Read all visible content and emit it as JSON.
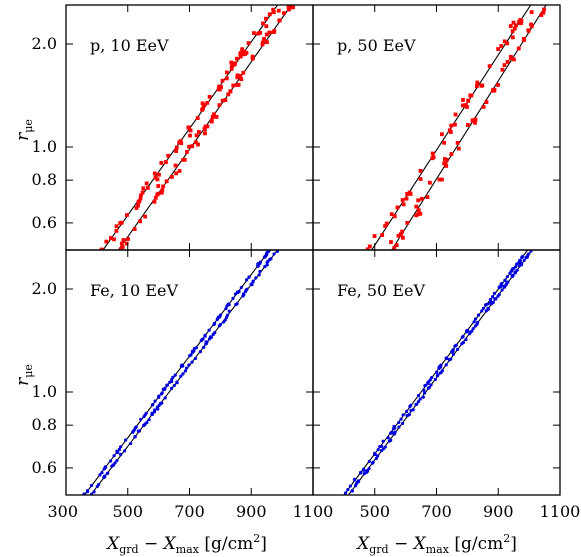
{
  "chart_data": {
    "type": "scatter",
    "ylabel": "r_{μe}",
    "xlabel": "X_grd − X_max [g/cm²]",
    "y_scale": "log",
    "xlim": [
      300,
      1100
    ],
    "ylim": [
      0.5,
      2.6
    ],
    "xticks": [
      300,
      500,
      700,
      900,
      1100
    ],
    "yticks": [
      0.6,
      0.8,
      1.0,
      2.0
    ],
    "panels": [
      {
        "label": "p, 10 EeV",
        "color": "#ff0000",
        "n_points": 150,
        "spread": 0.06,
        "bands": [
          [
            [
              420,
              0.5
            ],
            [
              985,
              2.6
            ]
          ],
          [
            [
              470,
              0.5
            ],
            [
              1030,
              2.6
            ]
          ]
        ]
      },
      {
        "label": "p, 50 EeV",
        "color": "#ff0000",
        "n_points": 110,
        "spread": 0.07,
        "bands": [
          [
            [
              490,
              0.5
            ],
            [
              1005,
              2.6
            ]
          ],
          [
            [
              555,
              0.5
            ],
            [
              1055,
              2.6
            ]
          ]
        ]
      },
      {
        "label": "Fe, 10 EeV",
        "color": "#0000dd",
        "n_points": 190,
        "spread": 0.015,
        "bands": [
          [
            [
              360,
              0.5
            ],
            [
              960,
              2.6
            ]
          ],
          [
            [
              380,
              0.5
            ],
            [
              985,
              2.6
            ]
          ]
        ]
      },
      {
        "label": "Fe, 50 EeV",
        "color": "#0000dd",
        "n_points": 190,
        "spread": 0.015,
        "bands": [
          [
            [
              400,
              0.5
            ],
            [
              995,
              2.6
            ]
          ],
          [
            [
              415,
              0.5
            ],
            [
              1010,
              2.6
            ]
          ]
        ]
      }
    ]
  },
  "labels": {
    "ylabel_main": "r",
    "ylabel_sub": "μe",
    "xlabel_main": "X",
    "xlabel_sub1": "grd",
    "xlabel_mid": " − X",
    "xlabel_sub2": "max",
    "xlabel_units": " [g/cm",
    "xlabel_sup": "2",
    "xlabel_close": "]"
  }
}
